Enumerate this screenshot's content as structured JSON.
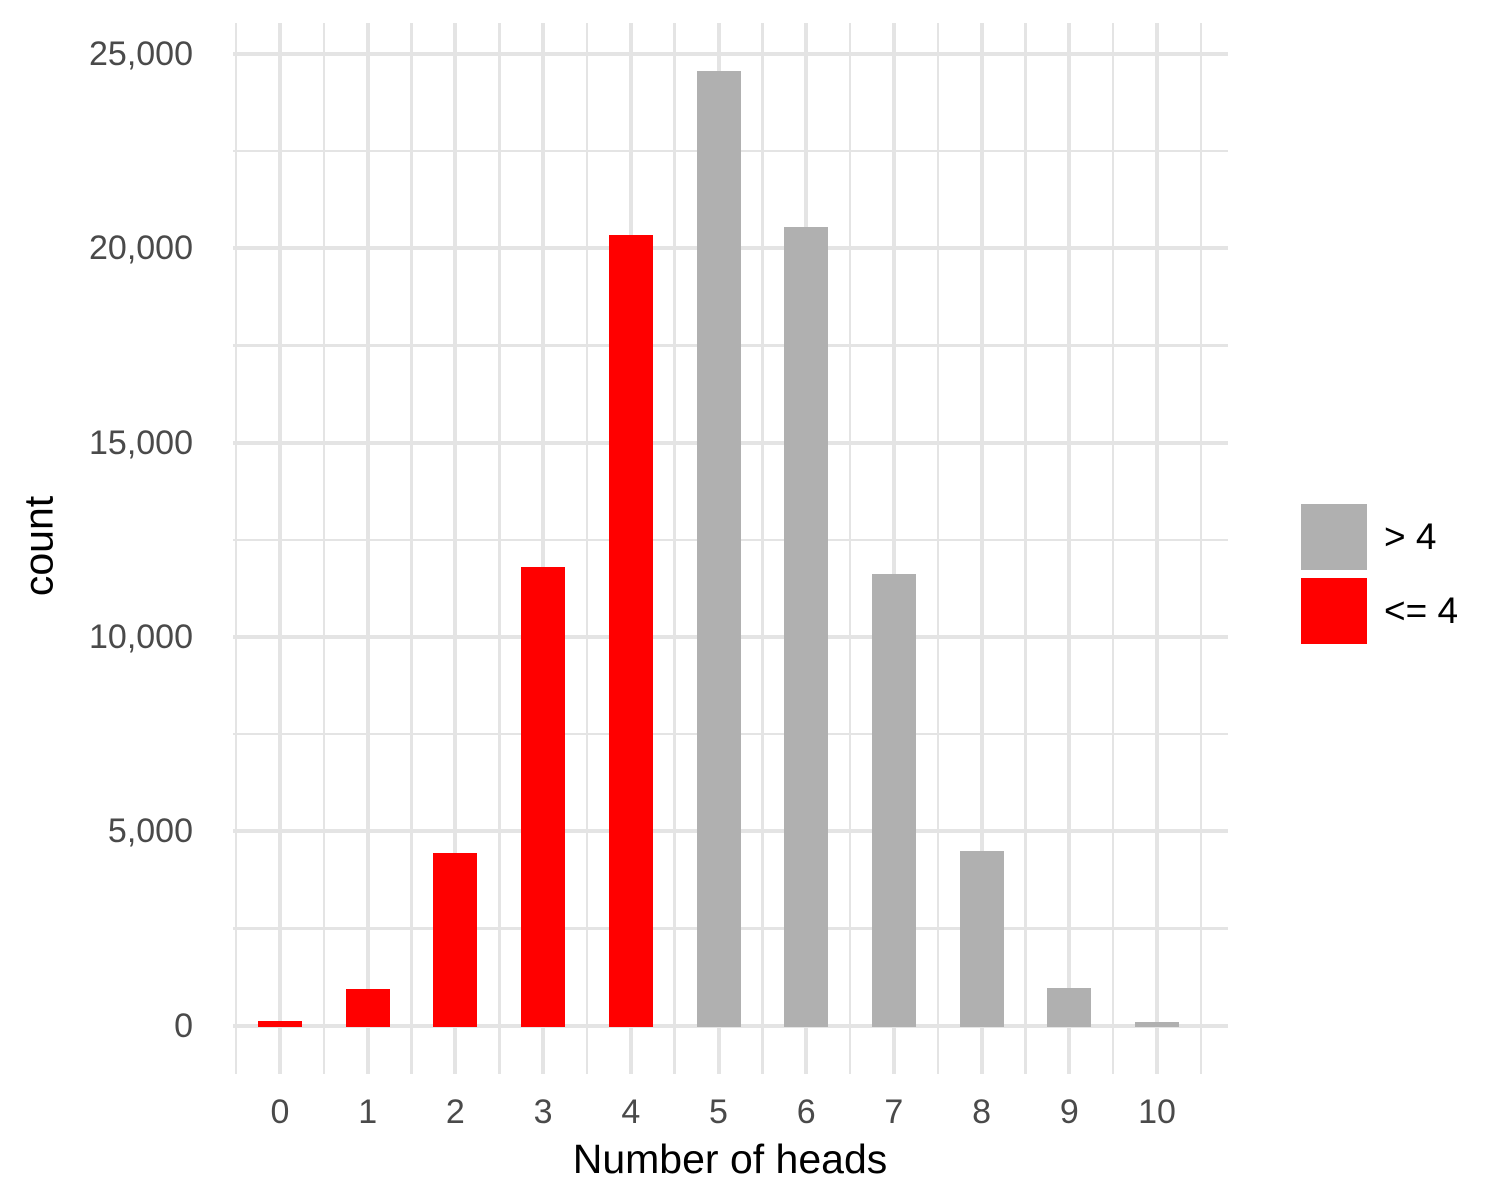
{
  "chart_data": {
    "type": "bar",
    "title": "",
    "xlabel": "Number of heads",
    "ylabel": "count",
    "categories": [
      "0",
      "1",
      "2",
      "3",
      "4",
      "5",
      "6",
      "7",
      "8",
      "9",
      "10"
    ],
    "values": [
      120,
      950,
      4430,
      11790,
      20340,
      24570,
      20550,
      11620,
      4480,
      970,
      90
    ],
    "bar_groups": [
      "<= 4",
      "<= 4",
      "<= 4",
      "<= 4",
      "<= 4",
      "> 4",
      "> 4",
      "> 4",
      "> 4",
      "> 4",
      "> 4"
    ],
    "group_colors": {
      "> 4": "#b0b0b0",
      "<= 4": "#ff0000"
    },
    "legend": {
      "position": "right",
      "entries": [
        {
          "label": "> 4",
          "color": "#b0b0b0"
        },
        {
          "label": "<= 4",
          "color": "#ff0000"
        }
      ]
    },
    "y_axis": {
      "tick_values": [
        0,
        5000,
        10000,
        15000,
        20000,
        25000
      ],
      "tick_labels": [
        "0",
        "5,000",
        "10,000",
        "15,000",
        "20,000",
        "25,000"
      ],
      "minor_gridline_values": [
        2500,
        7500,
        12500,
        17500,
        22500
      ],
      "range": [
        0,
        25800
      ]
    },
    "grid": "major and minor gridlines, light gray on white, no axis lines or tick marks",
    "colors": {
      "grid": "#e4e4e4",
      "tick_label": "#4a4a4a",
      "axis_title": "#000000",
      "background": "#ffffff"
    }
  }
}
